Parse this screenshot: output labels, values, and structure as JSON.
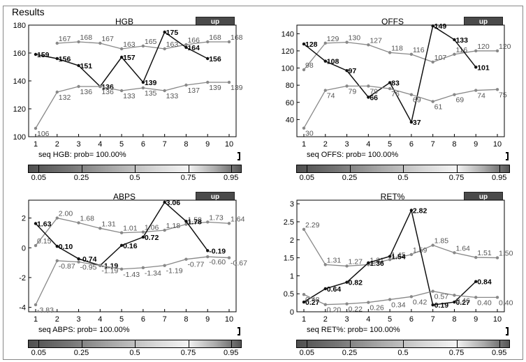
{
  "frame": {
    "title": "Results"
  },
  "up_label": "up",
  "colorbar_ticks": [
    "0.05",
    "0.25",
    "0.5",
    "0.75",
    "0.95"
  ],
  "chart_data": [
    {
      "type": "line",
      "title": "HGB",
      "prob_text": "seq HGB: prob= 100.00%",
      "x": [
        1,
        2,
        3,
        4,
        5,
        6,
        7,
        8,
        9,
        10
      ],
      "ylim": [
        100,
        180
      ],
      "yticks": [
        100,
        120,
        140,
        160,
        180
      ],
      "series": [
        {
          "name": "upper",
          "x": [
            2,
            3,
            4,
            5,
            6,
            7,
            8,
            9,
            10
          ],
          "values": [
            167,
            168,
            167,
            163,
            165,
            163,
            166,
            168,
            168
          ]
        },
        {
          "name": "observed",
          "x": [
            1,
            2,
            3,
            4,
            5,
            6,
            7,
            8,
            9
          ],
          "values": [
            159,
            156,
            151,
            136,
            157,
            139,
            175,
            164,
            156
          ]
        },
        {
          "name": "lower",
          "x": [
            1,
            2,
            3,
            4,
            5,
            6,
            7,
            8,
            9,
            10
          ],
          "values": [
            106,
            132,
            136,
            136,
            133,
            135,
            133,
            137,
            139,
            139
          ]
        }
      ]
    },
    {
      "type": "line",
      "title": "OFFS",
      "prob_text": "seq OFFS: prob= 100.00%",
      "x": [
        1,
        2,
        3,
        4,
        5,
        6,
        7,
        8,
        9,
        10
      ],
      "ylim": [
        20,
        150
      ],
      "yticks": [
        40,
        60,
        80,
        100,
        120,
        140
      ],
      "series": [
        {
          "name": "upper",
          "x": [
            1,
            2,
            3,
            4,
            5,
            6,
            7,
            8,
            9,
            10
          ],
          "values": [
            98,
            129,
            130,
            127,
            118,
            116,
            107,
            116,
            120,
            120
          ]
        },
        {
          "name": "observed",
          "x": [
            1,
            2,
            3,
            4,
            5,
            6,
            7,
            8,
            9
          ],
          "values": [
            128,
            108,
            97,
            66,
            83,
            37,
            149,
            133,
            101
          ]
        },
        {
          "name": "lower",
          "x": [
            1,
            2,
            3,
            4,
            5,
            6,
            7,
            8,
            9,
            10
          ],
          "values": [
            30,
            74,
            79,
            79,
            76,
            69,
            61,
            69,
            74,
            75
          ]
        }
      ]
    },
    {
      "type": "line",
      "title": "ABPS",
      "prob_text": "seq ABPS: prob= 100.00%",
      "x": [
        1,
        2,
        3,
        4,
        5,
        6,
        7,
        8,
        9,
        10
      ],
      "ylim": [
        -4.3,
        3.2
      ],
      "yticks": [
        -4,
        -2,
        0,
        2
      ],
      "series": [
        {
          "name": "upper",
          "x": [
            1,
            2,
            3,
            4,
            5,
            6,
            7,
            8,
            9,
            10
          ],
          "values": [
            0.15,
            2.0,
            1.68,
            1.31,
            1.01,
            1.06,
            1.18,
            1.58,
            1.73,
            1.64
          ]
        },
        {
          "name": "observed",
          "x": [
            1,
            2,
            3,
            4,
            5,
            6,
            7,
            8,
            9
          ],
          "values": [
            1.63,
            0.1,
            -0.74,
            -1.19,
            0.16,
            0.72,
            3.06,
            1.78,
            -0.19
          ]
        },
        {
          "name": "lower",
          "x": [
            1,
            2,
            3,
            4,
            5,
            6,
            7,
            8,
            9,
            10
          ],
          "values": [
            -3.83,
            -0.87,
            -0.95,
            -1.19,
            -1.43,
            -1.34,
            -1.19,
            -0.77,
            -0.6,
            -0.67
          ]
        }
      ]
    },
    {
      "type": "line",
      "title": "RET%",
      "prob_text": "seq RET%: prob= 100.00%",
      "x": [
        1,
        2,
        3,
        4,
        5,
        6,
        7,
        8,
        9,
        10
      ],
      "ylim": [
        0,
        3.1
      ],
      "yticks": [
        0,
        0.5,
        1,
        1.5,
        2,
        2.5,
        3
      ],
      "series": [
        {
          "name": "upper",
          "x": [
            1,
            2,
            3,
            4,
            5,
            6,
            7,
            8,
            9,
            10
          ],
          "values": [
            2.29,
            1.31,
            1.27,
            1.31,
            1.45,
            1.59,
            1.85,
            1.64,
            1.51,
            1.5
          ]
        },
        {
          "name": "observed",
          "x": [
            1,
            2,
            3,
            4,
            5,
            6,
            7,
            8,
            9
          ],
          "values": [
            0.27,
            0.64,
            0.82,
            1.36,
            1.54,
            2.82,
            0.19,
            0.27,
            0.84
          ]
        },
        {
          "name": "lower",
          "x": [
            1,
            2,
            3,
            4,
            5,
            6,
            7,
            8,
            9,
            10
          ],
          "values": [
            0.48,
            0.2,
            0.22,
            0.26,
            0.34,
            0.42,
            0.57,
            0.46,
            0.4,
            0.4
          ]
        }
      ]
    }
  ]
}
